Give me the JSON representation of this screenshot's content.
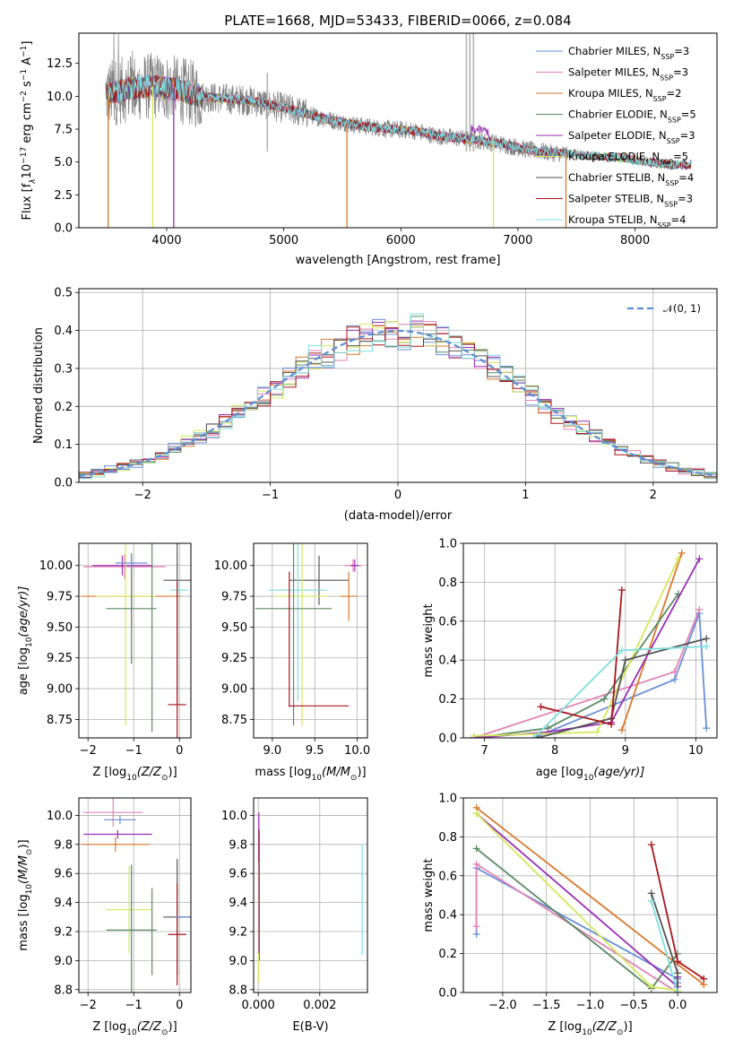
{
  "colors": {
    "chabrier_miles": "#6a8fd6",
    "salpeter_miles": "#e283b6",
    "kroupa_miles": "#d9792c",
    "chabrier_elodie": "#5a8a64",
    "salpeter_elodie": "#9b2fb5",
    "kroupa_elodie": "#d4e85c",
    "chabrier_stelib": "#555555",
    "salpeter_stelib": "#a8161d",
    "kroupa_stelib": "#7fdede",
    "data": "#808080",
    "normal": "#5b8fd6"
  },
  "chart_data": [
    {
      "id": "spectrum",
      "type": "line",
      "title": "PLATE=1668, MJD=53433, FIBERID=0066, z=0.084",
      "xlabel": "wavelength [Angstrom, rest frame]",
      "ylabel_main": "Flux [f",
      "ylabel_lambda": "λ",
      "ylabel_mid": "10",
      "ylabel_exp1": "−17",
      "ylabel_rest": " erg cm",
      "ylabel_exp2": "−2",
      "ylabel_s": " s",
      "ylabel_exp3": "−1",
      "ylabel_A": " A",
      "ylabel_exp4": "−1",
      "ylabel_end": "]",
      "xlim": [
        3250,
        8700
      ],
      "ylim": [
        0,
        14.8
      ],
      "xticks": [
        "4000",
        "5000",
        "6000",
        "7000",
        "8000"
      ],
      "yticks": [
        "0.0",
        "2.5",
        "5.0",
        "7.5",
        "10.0",
        "12.5"
      ],
      "continuum_x": [
        3500,
        3700,
        3900,
        4100,
        4300,
        4500,
        4700,
        4900,
        5100,
        5300,
        5500,
        5700,
        5900,
        6100,
        6300,
        6500,
        6700,
        6900,
        7100,
        7300,
        7500,
        7700,
        7900,
        8100,
        8300
      ],
      "continuum_y": [
        10.2,
        10.6,
        10.8,
        10.5,
        10.0,
        9.8,
        9.7,
        9.3,
        8.9,
        8.4,
        8.0,
        7.7,
        7.5,
        7.4,
        7.0,
        6.8,
        6.6,
        6.3,
        5.9,
        5.7,
        5.6,
        5.4,
        5.3,
        5.0,
        4.8
      ],
      "legend": [
        {
          "key": "chabrier_miles",
          "label": "Chabrier MILES, N",
          "sub": "SSP",
          "tail": "=3"
        },
        {
          "key": "salpeter_miles",
          "label": "Salpeter MILES, N",
          "sub": "SSP",
          "tail": "=3"
        },
        {
          "key": "kroupa_miles",
          "label": "Kroupa MILES, N",
          "sub": "SSP",
          "tail": "=2"
        },
        {
          "key": "chabrier_elodie",
          "label": "Chabrier ELODIE, N",
          "sub": "SSP",
          "tail": "=5"
        },
        {
          "key": "salpeter_elodie",
          "label": "Salpeter ELODIE, N",
          "sub": "SSP",
          "tail": "=3"
        },
        {
          "key": "kroupa_elodie",
          "label": "Kroupa ELODIE, N",
          "sub": "SSP",
          "tail": "=5"
        },
        {
          "key": "chabrier_stelib",
          "label": "Chabrier STELIB, N",
          "sub": "SSP",
          "tail": "=4"
        },
        {
          "key": "salpeter_stelib",
          "label": "Salpeter STELIB, N",
          "sub": "SSP",
          "tail": "=3"
        },
        {
          "key": "kroupa_stelib",
          "label": "Kroupa STELIB, N",
          "sub": "SSP",
          "tail": "=4"
        }
      ]
    },
    {
      "id": "residuals",
      "type": "bar",
      "xlabel": "(data-model)/error",
      "ylabel": "Normed distribution",
      "xlim": [
        -2.5,
        2.5
      ],
      "ylim": [
        0,
        0.51
      ],
      "xticks": [
        "−2",
        "−1",
        "0",
        "1",
        "2"
      ],
      "xtick_values": [
        -2,
        -1,
        0,
        1,
        2
      ],
      "yticks": [
        "0.0",
        "0.1",
        "0.2",
        "0.3",
        "0.4",
        "0.5"
      ],
      "legend_label": "𝒩(0, 1)",
      "bin_width": 0.1
    },
    {
      "id": "age_vs_Z",
      "type": "scatter",
      "xlabel": "Z [log",
      "xlabel_sub": "10",
      "xlabel_rest": "(Z/Z",
      "xlabel_end": ")]",
      "ylabel": "age  [log",
      "ylabel_sub": "10",
      "ylabel_rest": "(age/yr)]",
      "xlim": [
        -2.2,
        0.25
      ],
      "ylim": [
        8.6,
        10.18
      ],
      "xticks": [
        "−2",
        "−1",
        "0"
      ],
      "xtick_values": [
        -2,
        -1,
        0
      ],
      "yticks": [
        "8.75",
        "9.00",
        "9.25",
        "9.50",
        "9.75",
        "10.00"
      ],
      "ytick_values": [
        8.75,
        9.0,
        9.25,
        9.5,
        9.75,
        10.0
      ],
      "points": [
        {
          "key": "salpeter_miles",
          "x": -1.2,
          "xerr": 0.9,
          "y": 9.99,
          "yerr": 0.1
        },
        {
          "key": "salpeter_elodie",
          "x": -1.25,
          "xerr": 0.65,
          "y": 10.0,
          "yerr": 0.08
        },
        {
          "key": "kroupa_miles",
          "x": -1.05,
          "xerr": 1.1,
          "y": 9.75,
          "yerr": 0.25
        },
        {
          "key": "kroupa_elodie",
          "x": -1.18,
          "xerr": 0.65,
          "y": 9.75,
          "yerr": 1.05
        },
        {
          "key": "chabrier_elodie",
          "x": -1.05,
          "xerr": 0.55,
          "y": 9.65,
          "yerr": 0.45
        },
        {
          "key": "chabrier_miles",
          "x": -1.05,
          "xerr": 0.35,
          "y": 10.02,
          "yerr": 0.05
        },
        {
          "key": "chabrier_stelib",
          "x": -0.05,
          "xerr": 0.3,
          "y": 9.88,
          "yerr": 1.0
        },
        {
          "key": "kroupa_stelib",
          "x": 0.0,
          "xerr": 0.2,
          "y": 9.8,
          "yerr": 0.06
        },
        {
          "key": "salpeter_stelib",
          "x": -0.05,
          "xerr": 0.2,
          "y": 8.87,
          "yerr": 1.0
        },
        {
          "key": "chabrier_elodie",
          "x": -0.6,
          "xerr": 0.0,
          "y": 9.55,
          "yerr": 0.9
        }
      ]
    },
    {
      "id": "age_vs_mass",
      "type": "scatter",
      "xlabel": "mass [log",
      "xlabel_sub": "10",
      "xlabel_rest": "(M/M",
      "xlabel_end": ")]",
      "xlim": [
        8.78,
        10.12
      ],
      "ylim": [
        8.6,
        10.18
      ],
      "xticks": [
        "9.0",
        "9.5",
        "10.0"
      ],
      "xtick_values": [
        9.0,
        9.5,
        10.0
      ],
      "yticks": [
        "8.75",
        "9.00",
        "9.25",
        "9.50",
        "9.75",
        "10.00"
      ],
      "ytick_values": [
        8.75,
        9.0,
        9.25,
        9.5,
        9.75,
        10.0
      ],
      "points": [
        {
          "key": "salpeter_miles",
          "x": 9.95,
          "xerr": 0.1,
          "y": 10.0,
          "yerr": 0.05
        },
        {
          "key": "salpeter_elodie",
          "x": 9.97,
          "xerr": 0.05,
          "y": 10.0,
          "yerr": 0.05
        },
        {
          "key": "chabrier_stelib",
          "x": 9.55,
          "xerr": 0.35,
          "y": 9.88,
          "yerr": 0.2
        },
        {
          "key": "kroupa_stelib",
          "x": 9.3,
          "xerr": 0.35,
          "y": 9.8,
          "yerr": 0.9
        },
        {
          "key": "kroupa_miles",
          "x": 9.9,
          "xerr": 0.1,
          "y": 9.75,
          "yerr": 0.2
        },
        {
          "key": "kroupa_elodie",
          "x": 9.35,
          "xerr": 0.3,
          "y": 9.75,
          "yerr": 1.05
        },
        {
          "key": "chabrier_elodie",
          "x": 9.25,
          "xerr": 0.45,
          "y": 9.65,
          "yerr": 0.95
        },
        {
          "key": "salpeter_stelib",
          "x": 9.55,
          "xerr": 0.35,
          "y": 8.86,
          "yerr": 0.0
        },
        {
          "key": "salpeter_stelib",
          "x": 9.2,
          "xerr": 0.0,
          "y": 9.4,
          "yerr": 0.55
        }
      ]
    },
    {
      "id": "weight_vs_age",
      "type": "line",
      "xlabel": "age  [log",
      "xlabel_sub": "10",
      "xlabel_rest": "(age/yr)]",
      "ylabel": "mass weight",
      "xlim": [
        6.7,
        10.3
      ],
      "ylim": [
        0,
        1.0
      ],
      "xticks": [
        "7",
        "8",
        "9",
        "10"
      ],
      "xtick_values": [
        7,
        8,
        9,
        10
      ],
      "yticks": [
        "0.0",
        "0.2",
        "0.4",
        "0.6",
        "0.8",
        "1.0"
      ],
      "ytick_values": [
        0,
        0.2,
        0.4,
        0.6,
        0.8,
        1.0
      ],
      "series": [
        {
          "key": "chabrier_miles",
          "x": [
            7.7,
            9.7,
            10.05,
            10.15
          ],
          "y": [
            0.0,
            0.3,
            0.64,
            0.05
          ]
        },
        {
          "key": "salpeter_miles",
          "x": [
            6.85,
            9.7,
            10.05
          ],
          "y": [
            0.0,
            0.34,
            0.66
          ]
        },
        {
          "key": "kroupa_miles",
          "x": [
            8.95,
            9.8
          ],
          "y": [
            0.04,
            0.95
          ]
        },
        {
          "key": "chabrier_elodie",
          "x": [
            6.85,
            7.9,
            8.7,
            9.75
          ],
          "y": [
            0.0,
            0.05,
            0.2,
            0.74
          ]
        },
        {
          "key": "salpeter_elodie",
          "x": [
            6.85,
            7.9,
            8.8,
            10.05
          ],
          "y": [
            0.0,
            0.03,
            0.08,
            0.92
          ]
        },
        {
          "key": "kroupa_elodie",
          "x": [
            6.85,
            8.6,
            9.75
          ],
          "y": [
            0.01,
            0.03,
            0.92
          ]
        },
        {
          "key": "chabrier_stelib",
          "x": [
            7.75,
            8.8,
            9.0,
            10.15
          ],
          "y": [
            0.0,
            0.1,
            0.4,
            0.51
          ]
        },
        {
          "key": "salpeter_stelib",
          "x": [
            7.8,
            8.8,
            8.95
          ],
          "y": [
            0.16,
            0.07,
            0.76
          ]
        },
        {
          "key": "kroupa_stelib",
          "x": [
            7.7,
            8.95,
            10.15
          ],
          "y": [
            0.0,
            0.45,
            0.47
          ]
        }
      ]
    },
    {
      "id": "mass_vs_Z",
      "type": "scatter",
      "xlabel": "Z [log",
      "xlabel_sub": "10",
      "xlabel_rest": "(Z/Z",
      "xlabel_end": ")]",
      "ylabel": "mass [log",
      "ylabel_sub": "10",
      "ylabel_rest": "(M/M",
      "ylabel_end": ")]",
      "xlim": [
        -2.2,
        0.25
      ],
      "ylim": [
        8.78,
        10.12
      ],
      "xticks": [
        "−2",
        "−1",
        "0"
      ],
      "xtick_values": [
        -2,
        -1,
        0
      ],
      "yticks": [
        "8.8",
        "9.0",
        "9.2",
        "9.4",
        "9.6",
        "9.8",
        "10.0"
      ],
      "ytick_values": [
        8.8,
        9.0,
        9.2,
        9.4,
        9.6,
        9.8,
        10.0
      ],
      "points": [
        {
          "key": "salpeter_miles",
          "x": -1.45,
          "xerr": 0.65,
          "y": 10.02,
          "yerr": 0.1
        },
        {
          "key": "chabrier_miles",
          "x": -1.3,
          "xerr": 0.35,
          "y": 9.97,
          "yerr": 0.03
        },
        {
          "key": "salpeter_elodie",
          "x": -1.35,
          "xerr": 0.75,
          "y": 9.87,
          "yerr": 0.03
        },
        {
          "key": "kroupa_miles",
          "x": -1.4,
          "xerr": 0.75,
          "y": 9.8,
          "yerr": 0.05
        },
        {
          "key": "kroupa_elodie",
          "x": -1.1,
          "xerr": 0.5,
          "y": 9.35,
          "yerr": 0.3
        },
        {
          "key": "chabrier_elodie",
          "x": -1.05,
          "xerr": 0.55,
          "y": 9.21,
          "yerr": 0.45
        },
        {
          "key": "chabrier_stelib",
          "x": -0.05,
          "xerr": 0.3,
          "y": 9.3,
          "yerr": 0.4
        },
        {
          "key": "salpeter_stelib",
          "x": -0.05,
          "xerr": 0.2,
          "y": 9.18,
          "yerr": 0.35
        },
        {
          "key": "chabrier_miles",
          "x": 0.05,
          "xerr": 0.15,
          "y": 9.3,
          "yerr": 0.0
        },
        {
          "key": "chabrier_elodie",
          "x": -0.6,
          "xerr": 0.0,
          "y": 9.2,
          "yerr": 0.3
        }
      ]
    },
    {
      "id": "mass_vs_ebv",
      "type": "scatter",
      "xlabel": "E(B-V)",
      "xlim": [
        -0.00015,
        0.00355
      ],
      "ylim": [
        8.78,
        10.12
      ],
      "xticks": [
        "0.000",
        "0.002"
      ],
      "xtick_values": [
        0,
        0.002
      ],
      "yticks": [
        "8.8",
        "9.0",
        "9.2",
        "9.4",
        "9.6",
        "9.8",
        "10.0"
      ],
      "ytick_values": [
        8.8,
        9.0,
        9.2,
        9.4,
        9.6,
        9.8,
        10.0
      ],
      "points": [
        {
          "key": "salpeter_elodie",
          "x": 2e-05,
          "xerr": 0,
          "y": 9.85,
          "yerr": 0.17
        },
        {
          "key": "salpeter_stelib",
          "x": 3e-05,
          "xerr": 0,
          "y": 9.45,
          "yerr": 0.45
        },
        {
          "key": "kroupa_elodie",
          "x": 1e-05,
          "xerr": 0,
          "y": 8.95,
          "yerr": 0.1
        },
        {
          "key": "kroupa_stelib",
          "x": 0.00338,
          "xerr": 0,
          "y": 9.42,
          "yerr": 0.38
        }
      ]
    },
    {
      "id": "weight_vs_Z",
      "type": "line",
      "xlabel": "Z [log",
      "xlabel_sub": "10",
      "xlabel_rest": "(Z/Z",
      "xlabel_end": ")]",
      "ylabel": "mass weight",
      "xlim": [
        -2.45,
        0.45
      ],
      "ylim": [
        0,
        1.0
      ],
      "xticks": [
        "−2.0",
        "−1.5",
        "−1.0",
        "−0.5",
        "0.0"
      ],
      "xtick_values": [
        -2.0,
        -1.5,
        -1.0,
        -0.5,
        0.0
      ],
      "yticks": [
        "0.0",
        "0.2",
        "0.4",
        "0.6",
        "0.8",
        "1.0"
      ],
      "ytick_values": [
        0,
        0.2,
        0.4,
        0.6,
        0.8,
        1.0
      ],
      "series": [
        {
          "key": "chabrier_miles",
          "x": [
            -2.3,
            -2.3,
            0.0,
            0.0
          ],
          "y": [
            0.3,
            0.64,
            0.07,
            0.05
          ]
        },
        {
          "key": "salpeter_miles",
          "x": [
            -2.3,
            -2.3,
            0.0
          ],
          "y": [
            0.34,
            0.66,
            0.0
          ]
        },
        {
          "key": "kroupa_miles",
          "x": [
            -2.3,
            0.3
          ],
          "y": [
            0.95,
            0.04
          ]
        },
        {
          "key": "chabrier_elodie",
          "x": [
            -2.3,
            -0.3,
            0.0
          ],
          "y": [
            0.74,
            0.02,
            0.2
          ]
        },
        {
          "key": "salpeter_elodie",
          "x": [
            -2.3,
            0.0,
            0.0
          ],
          "y": [
            0.92,
            0.03,
            0.08
          ]
        },
        {
          "key": "kroupa_elodie",
          "x": [
            -2.3,
            -0.3,
            0.0
          ],
          "y": [
            0.92,
            0.03,
            0.01
          ]
        },
        {
          "key": "chabrier_stelib",
          "x": [
            -0.3,
            0.0,
            0.0
          ],
          "y": [
            0.51,
            0.1,
            0.0
          ]
        },
        {
          "key": "salpeter_stelib",
          "x": [
            -0.3,
            0.0,
            0.3
          ],
          "y": [
            0.76,
            0.16,
            0.07
          ]
        },
        {
          "key": "kroupa_stelib",
          "x": [
            -0.3,
            0.0
          ],
          "y": [
            0.47,
            0.0
          ]
        }
      ]
    }
  ]
}
